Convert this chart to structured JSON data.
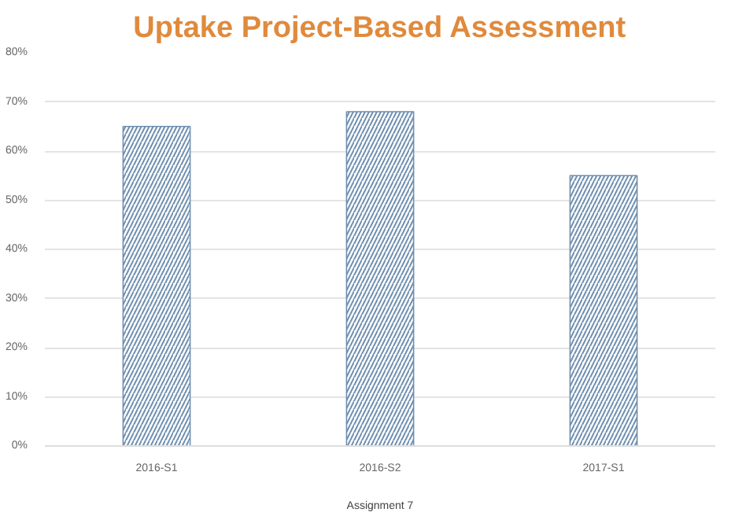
{
  "chart_data": {
    "type": "bar",
    "title": "Uptake Project-Based Assessment",
    "xlabel": "Assignment 7",
    "categories": [
      "2016-S1",
      "2016-S2",
      "2017-S1"
    ],
    "values": [
      65,
      68,
      55
    ],
    "color": "#6f8fb0",
    "ylim": [
      0,
      80
    ],
    "yticks": [
      {
        "value": 0,
        "label": "0%"
      },
      {
        "value": 10,
        "label": "10%"
      },
      {
        "value": 20,
        "label": "20%"
      },
      {
        "value": 30,
        "label": "30%"
      },
      {
        "value": 40,
        "label": "40%"
      },
      {
        "value": 50,
        "label": "50%"
      },
      {
        "value": 60,
        "label": "60%"
      },
      {
        "value": 70,
        "label": "70%"
      },
      {
        "value": 80,
        "label": "80%"
      }
    ],
    "grid": "y"
  }
}
